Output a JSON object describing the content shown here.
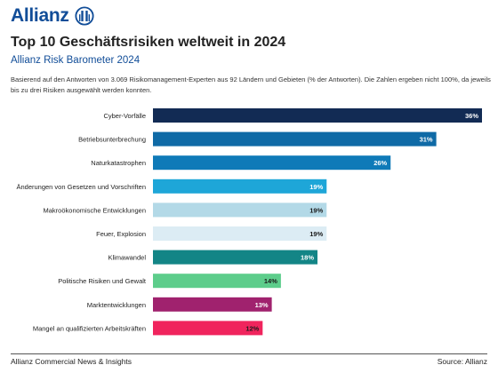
{
  "brand": {
    "name": "Allianz"
  },
  "title": "Top 10 Geschäftsrisiken weltweit in 2024",
  "subtitle": "Allianz Risk Barometer 2024",
  "description": "Basierend auf den Antworten von 3.069 Risikomanagement-Experten aus 92 Ländern und Gebieten (% der Antworten). Die Zahlen ergeben nicht 100%, da jeweils bis zu drei Risiken ausgewählt werden konnten.",
  "footer": {
    "left": "Allianz Commercial News & Insights",
    "right": "Source: Allianz"
  },
  "chart_data": {
    "type": "bar",
    "orientation": "horizontal",
    "xlim": [
      0,
      36
    ],
    "grid": false,
    "categories": [
      "Cyber-Vorfälle",
      "Betriebsunterbrechung",
      "Naturkatastrophen",
      "Änderungen von Gesetzen und Vorschriften",
      "Makroökonomische Entwicklungen",
      "Feuer, Explosion",
      "Klimawandel",
      "Politische Risiken und Gewalt",
      "Marktentwicklungen",
      "Mangel an qualifizierten Arbeitskräften"
    ],
    "values": [
      36,
      31,
      26,
      19,
      19,
      19,
      18,
      14,
      13,
      12
    ],
    "labels": [
      "36%",
      "31%",
      "26%",
      "19%",
      "19%",
      "19%",
      "18%",
      "14%",
      "13%",
      "12%"
    ],
    "colors": [
      "#122b54",
      "#0f6aa6",
      "#0f7ab8",
      "#1ea6d8",
      "#b3d9e7",
      "#dcecf4",
      "#138586",
      "#5dcd8b",
      "#a0226e",
      "#f0245d"
    ],
    "label_colors": [
      "#ffffff",
      "#ffffff",
      "#ffffff",
      "#ffffff",
      "#1a1a1a",
      "#1a1a1a",
      "#ffffff",
      "#1a1a1a",
      "#ffffff",
      "#1a1a1a"
    ]
  }
}
